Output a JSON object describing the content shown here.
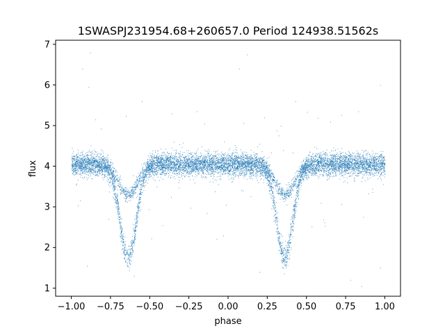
{
  "chart_data": {
    "type": "scatter",
    "title": "1SWASPJ231954.68+260657.0 Period 124938.51562s",
    "xlabel": "phase",
    "ylabel": "flux",
    "xlim": [
      -1.1,
      1.1
    ],
    "ylim": [
      0.8,
      7.1
    ],
    "xticks": [
      -1.0,
      -0.75,
      -0.5,
      -0.25,
      0.0,
      0.25,
      0.5,
      0.75,
      1.0
    ],
    "xtick_labels": [
      "−1.00",
      "−0.75",
      "−0.50",
      "−0.25",
      "0.00",
      "0.25",
      "0.50",
      "0.75",
      "1.00"
    ],
    "yticks": [
      1,
      2,
      3,
      4,
      5,
      6,
      7
    ],
    "ytick_labels": [
      "1",
      "2",
      "3",
      "4",
      "5",
      "6",
      "7"
    ],
    "grid": false,
    "color": "#1f77b4",
    "series": [
      {
        "description_points": "phase-folded light curve, two cycles",
        "baseline_flux": 4.05,
        "primary_minima": [
          {
            "phase": -0.64,
            "flux": 1.75
          },
          {
            "phase": 0.36,
            "flux": 1.75
          }
        ],
        "secondary_branch_minima": [
          {
            "phase": -0.64,
            "flux": 3.3
          },
          {
            "phase": 0.36,
            "flux": 3.3
          }
        ],
        "x": [
          -1.0,
          -0.9,
          -0.8,
          -0.75,
          -0.7,
          -0.64,
          -0.58,
          -0.5,
          -0.25,
          0.0,
          0.2,
          0.25,
          0.3,
          0.36,
          0.42,
          0.5,
          0.75,
          1.0
        ],
        "y": [
          4.1,
          4.0,
          3.7,
          3.2,
          2.4,
          1.75,
          2.6,
          3.95,
          4.1,
          4.1,
          3.9,
          3.3,
          2.3,
          1.75,
          2.6,
          3.95,
          4.05,
          4.1
        ],
        "outliers": [
          {
            "x": -0.88,
            "y": 6.8
          },
          {
            "x": -0.89,
            "y": 5.95
          },
          {
            "x": -0.93,
            "y": 6.4
          },
          {
            "x": 0.12,
            "y": 6.75
          },
          {
            "x": 0.07,
            "y": 6.4
          },
          {
            "x": 0.23,
            "y": 5.2
          },
          {
            "x": -0.2,
            "y": 5.35
          },
          {
            "x": 0.83,
            "y": 5.35
          },
          {
            "x": 0.97,
            "y": 6.0
          },
          {
            "x": 0.43,
            "y": 5.6
          },
          {
            "x": -0.55,
            "y": 5.6
          },
          {
            "x": -0.9,
            "y": 1.55
          },
          {
            "x": 0.85,
            "y": 1.05
          },
          {
            "x": -0.6,
            "y": 1.3
          },
          {
            "x": 0.2,
            "y": 1.4
          },
          {
            "x": 0.78,
            "y": 1.2
          },
          {
            "x": 0.97,
            "y": 1.5
          }
        ]
      }
    ]
  }
}
